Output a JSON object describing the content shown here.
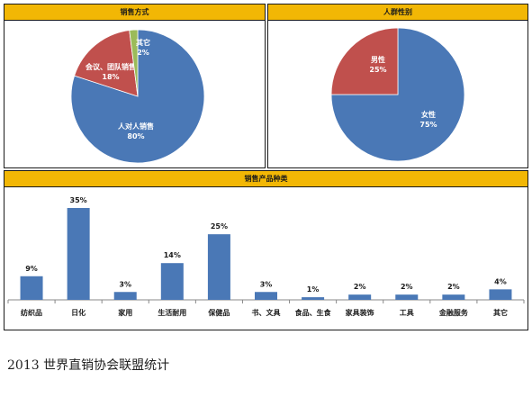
{
  "colors": {
    "header": "#f2b705",
    "blue": "#4a78b6",
    "red": "#c0504d",
    "green": "#9bbb59",
    "border": "#1a1a1a"
  },
  "caption": "2013 世界直销协会联盟统计",
  "chart_data": [
    {
      "type": "pie",
      "title": "销售方式",
      "slices": [
        {
          "label": "人对人销售",
          "value": 80,
          "value_label": "80%",
          "color": "#4a78b6"
        },
        {
          "label": "会议、团队销售",
          "value": 18,
          "value_label": "18%",
          "color": "#c0504d"
        },
        {
          "label": "其它",
          "value": 2,
          "value_label": "2%",
          "color": "#9bbb59"
        }
      ]
    },
    {
      "type": "pie",
      "title": "人群性别",
      "slices": [
        {
          "label": "女性",
          "value": 75,
          "value_label": "75%",
          "color": "#4a78b6"
        },
        {
          "label": "男性",
          "value": 25,
          "value_label": "25%",
          "color": "#c0504d"
        }
      ]
    },
    {
      "type": "bar",
      "title": "销售产品种类",
      "categories": [
        "纺织品",
        "日化",
        "家用",
        "生活耐用",
        "保健品",
        "书、文具",
        "食品、生食",
        "家具装饰",
        "工具",
        "金融服务",
        "其它"
      ],
      "values": [
        9,
        35,
        3,
        14,
        25,
        3,
        1,
        2,
        2,
        2,
        4
      ],
      "value_labels": [
        "9%",
        "35%",
        "3%",
        "14%",
        "25%",
        "3%",
        "1%",
        "2%",
        "2%",
        "2%",
        "4%"
      ],
      "ylim": [
        0,
        35
      ],
      "color": "#4a78b6"
    }
  ]
}
